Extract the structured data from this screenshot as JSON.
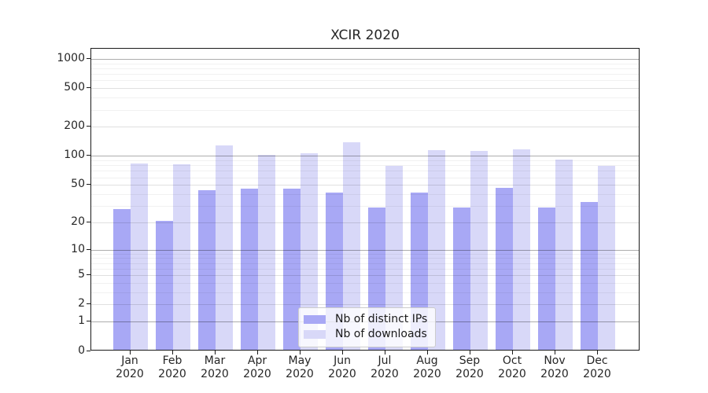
{
  "chart_data": {
    "type": "bar",
    "title": "XCIR 2020",
    "categories": [
      "Jan 2020",
      "Feb 2020",
      "Mar 2020",
      "Apr 2020",
      "May 2020",
      "Jun 2020",
      "Jul 2020",
      "Aug 2020",
      "Sep 2020",
      "Oct 2020",
      "Nov 2020",
      "Dec 2020"
    ],
    "series": [
      {
        "name": "Nb of distinct IPs",
        "color": "#a8a8f5",
        "values": [
          27,
          20,
          43,
          44,
          44,
          40,
          28,
          40,
          28,
          45,
          28,
          32
        ]
      },
      {
        "name": "Nb of downloads",
        "color": "#d8d8f8",
        "values": [
          81,
          80,
          126,
          99,
          104,
          136,
          76,
          111,
          110,
          113,
          90,
          76
        ]
      }
    ],
    "xlabel": "",
    "ylabel": "",
    "yscale": "symlog",
    "yticks": [
      0,
      1,
      2,
      5,
      10,
      20,
      50,
      100,
      200,
      500,
      1000
    ],
    "minor_yticks": [
      3,
      4,
      6,
      7,
      8,
      9,
      30,
      40,
      60,
      70,
      80,
      90,
      300,
      400,
      600,
      700,
      800,
      900
    ],
    "ylim": [
      0,
      1275
    ],
    "grid": true,
    "legend_position": "inside-bottom-center"
  },
  "colors": {
    "distinct_ips": "#a8a8f5",
    "downloads": "#d8d8f8",
    "spine": "#1a1a1a",
    "background": "#ffffff"
  }
}
